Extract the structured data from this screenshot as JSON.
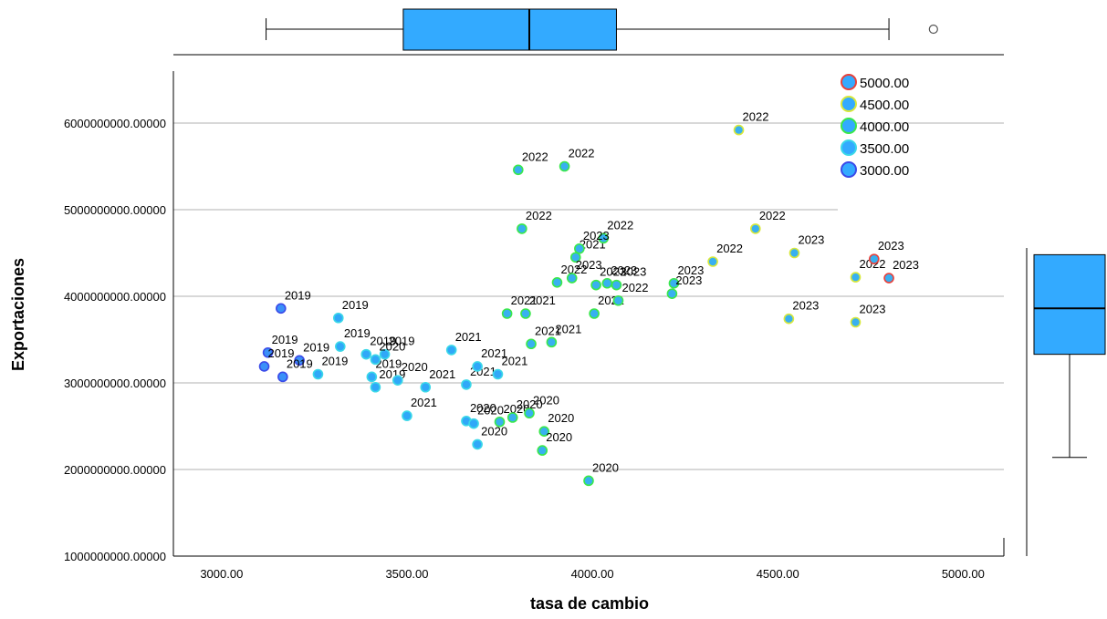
{
  "chart_data": {
    "type": "scatter",
    "xlabel": "tasa de cambio",
    "ylabel": "Exportaciones",
    "xlim": [
      2870,
      5110
    ],
    "ylim": [
      1000000000,
      6600000000
    ],
    "x_ticks": [
      "3000.00",
      "3500.00",
      "4000.00",
      "4500.00",
      "5000.00"
    ],
    "x_tick_values": [
      3000,
      3500,
      4000,
      4500,
      5000
    ],
    "y_ticks": [
      "1000000000.00000",
      "2000000000.00000",
      "3000000000.00000",
      "4000000000.00000",
      "5000000000.00000",
      "6000000000.00000"
    ],
    "y_tick_values": [
      1000000000,
      2000000000,
      3000000000,
      4000000000,
      5000000000,
      6000000000
    ],
    "grid": "horizontal",
    "legend": {
      "placement": "top-right",
      "entries": [
        {
          "label": "5000.00",
          "fill": "#33aaff",
          "stroke": "#e8403a"
        },
        {
          "label": "4500.00",
          "fill": "#33aaff",
          "stroke": "#d8e83a"
        },
        {
          "label": "4000.00",
          "fill": "#33aaff",
          "stroke": "#3ae84a"
        },
        {
          "label": "3500.00",
          "fill": "#33aaff",
          "stroke": "#3ad8e8"
        },
        {
          "label": "3000.00",
          "fill": "#33aaff",
          "stroke": "#3a4ae8"
        }
      ]
    },
    "points": [
      {
        "x": 3160,
        "y": 3860000000,
        "label": "2019"
      },
      {
        "x": 3315,
        "y": 3750000000,
        "label": "2019"
      },
      {
        "x": 3320,
        "y": 3420000000,
        "label": "2019"
      },
      {
        "x": 3125,
        "y": 3350000000,
        "label": "2019"
      },
      {
        "x": 3210,
        "y": 3260000000,
        "label": "2019"
      },
      {
        "x": 3390,
        "y": 3330000000,
        "label": "2019"
      },
      {
        "x": 3440,
        "y": 3330000000,
        "label": "2019"
      },
      {
        "x": 3115,
        "y": 3190000000,
        "label": "2019"
      },
      {
        "x": 3165,
        "y": 3070000000,
        "label": "2019"
      },
      {
        "x": 3260,
        "y": 3100000000,
        "label": "2019"
      },
      {
        "x": 3405,
        "y": 3070000000,
        "label": "2019"
      },
      {
        "x": 3415,
        "y": 2950000000,
        "label": "2019"
      },
      {
        "x": 3415,
        "y": 3270000000,
        "label": "2020"
      },
      {
        "x": 3475,
        "y": 3030000000,
        "label": "2020"
      },
      {
        "x": 3660,
        "y": 2560000000,
        "label": "2020"
      },
      {
        "x": 3680,
        "y": 2530000000,
        "label": "2020"
      },
      {
        "x": 3750,
        "y": 2550000000,
        "label": "2020"
      },
      {
        "x": 3785,
        "y": 2600000000,
        "label": "2020"
      },
      {
        "x": 3830,
        "y": 2650000000,
        "label": "2020"
      },
      {
        "x": 3870,
        "y": 2440000000,
        "label": "2020"
      },
      {
        "x": 3690,
        "y": 2290000000,
        "label": "2020"
      },
      {
        "x": 3865,
        "y": 2220000000,
        "label": "2020"
      },
      {
        "x": 3990,
        "y": 1870000000,
        "label": "2020"
      },
      {
        "x": 3500,
        "y": 2620000000,
        "label": "2021"
      },
      {
        "x": 3550,
        "y": 2950000000,
        "label": "2021"
      },
      {
        "x": 3620,
        "y": 3380000000,
        "label": "2021"
      },
      {
        "x": 3660,
        "y": 2980000000,
        "label": "2021"
      },
      {
        "x": 3690,
        "y": 3190000000,
        "label": "2021"
      },
      {
        "x": 3745,
        "y": 3100000000,
        "label": "2021"
      },
      {
        "x": 3770,
        "y": 3800000000,
        "label": "2021"
      },
      {
        "x": 3820,
        "y": 3800000000,
        "label": "2021"
      },
      {
        "x": 3835,
        "y": 3450000000,
        "label": "2021"
      },
      {
        "x": 3890,
        "y": 3470000000,
        "label": "2021"
      },
      {
        "x": 3955,
        "y": 4450000000,
        "label": "2021"
      },
      {
        "x": 4005,
        "y": 3800000000,
        "label": "2021"
      },
      {
        "x": 3800,
        "y": 5460000000,
        "label": "2022"
      },
      {
        "x": 3925,
        "y": 5500000000,
        "label": "2022"
      },
      {
        "x": 3810,
        "y": 4780000000,
        "label": "2022"
      },
      {
        "x": 4030,
        "y": 4670000000,
        "label": "2022"
      },
      {
        "x": 3905,
        "y": 4160000000,
        "label": "2022"
      },
      {
        "x": 4070,
        "y": 3950000000,
        "label": "2022"
      },
      {
        "x": 4325,
        "y": 4400000000,
        "label": "2022"
      },
      {
        "x": 4440,
        "y": 4780000000,
        "label": "2022"
      },
      {
        "x": 4395,
        "y": 5920000000,
        "label": "2022"
      },
      {
        "x": 4710,
        "y": 4220000000,
        "label": "2022"
      },
      {
        "x": 3965,
        "y": 4550000000,
        "label": "2023"
      },
      {
        "x": 3945,
        "y": 4210000000,
        "label": "2023"
      },
      {
        "x": 4010,
        "y": 4130000000,
        "label": "2023"
      },
      {
        "x": 4040,
        "y": 4150000000,
        "label": "2023"
      },
      {
        "x": 4065,
        "y": 4130000000,
        "label": "2023"
      },
      {
        "x": 4220,
        "y": 4150000000,
        "label": "2023"
      },
      {
        "x": 4215,
        "y": 4030000000,
        "label": "2023"
      },
      {
        "x": 4545,
        "y": 4500000000,
        "label": "2023"
      },
      {
        "x": 4530,
        "y": 3740000000,
        "label": "2023"
      },
      {
        "x": 4760,
        "y": 4430000000,
        "label": "2023"
      },
      {
        "x": 4800,
        "y": 4210000000,
        "label": "2023"
      },
      {
        "x": 4710,
        "y": 3700000000,
        "label": "2023"
      }
    ],
    "boxplot_x": {
      "whisker_low": 3120,
      "q1": 3490,
      "median": 3830,
      "q3": 4065,
      "whisker_high": 4800,
      "outliers": [
        4920
      ]
    },
    "boxplot_y": {
      "whisker_low": 2140000000,
      "q1": 3330000000,
      "median": 3860000000,
      "q3": 4480000000,
      "whisker_high": 4500000000
    }
  }
}
